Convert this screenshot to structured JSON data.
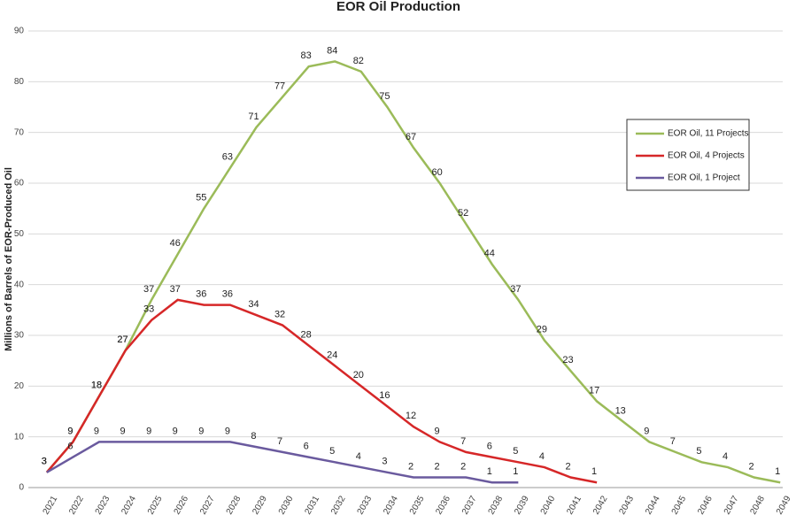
{
  "chart_data": {
    "type": "line",
    "title": "EOR Oil Production",
    "y_label": "Millions of Barrels of EOR-Produced Oil",
    "categories": [
      "2021",
      "2022",
      "2023",
      "2024",
      "2025",
      "2026",
      "2027",
      "2028",
      "2029",
      "2030",
      "2031",
      "2032",
      "2033",
      "2034",
      "2035",
      "2036",
      "2037",
      "2038",
      "2039",
      "2040",
      "2041",
      "2042",
      "2043",
      "2044",
      "2045",
      "2046",
      "2047",
      "2048",
      "2049"
    ],
    "series": [
      {
        "name": "EOR Oil, 11 Projects",
        "color": "#9bbb59",
        "values": [
          3,
          9,
          18,
          27,
          37,
          46,
          55,
          63,
          71,
          77,
          83,
          84,
          82,
          75,
          67,
          60,
          52,
          44,
          37,
          29,
          23,
          17,
          13,
          9,
          7,
          5,
          4,
          2,
          1
        ]
      },
      {
        "name": "EOR Oil, 4 Projects",
        "color": "#d62728",
        "values": [
          3,
          9,
          18,
          27,
          33,
          37,
          36,
          36,
          34,
          32,
          28,
          24,
          20,
          16,
          12,
          9,
          7,
          6,
          5,
          4,
          2,
          1,
          null,
          null,
          null,
          null,
          null,
          null,
          null
        ]
      },
      {
        "name": "EOR Oil, 1 Project",
        "color": "#6a5a9e",
        "values": [
          3,
          6,
          9,
          9,
          9,
          9,
          9,
          9,
          8,
          7,
          6,
          5,
          4,
          3,
          2,
          2,
          2,
          1,
          1,
          null,
          null,
          null,
          null,
          null,
          null,
          null,
          null,
          null,
          null
        ]
      }
    ],
    "ylim": [
      0,
      90
    ],
    "yticks": [
      0,
      10,
      20,
      30,
      40,
      50,
      60,
      70,
      80,
      90
    ],
    "grid": true,
    "legend": "right"
  }
}
